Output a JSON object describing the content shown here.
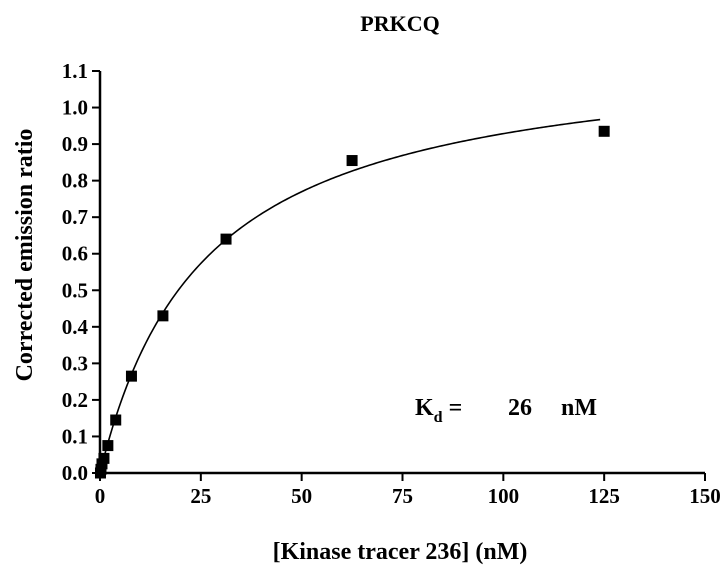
{
  "chart_data": {
    "type": "scatter",
    "title": "PRKCQ",
    "xlabel": "[Kinase tracer 236] (nM)",
    "ylabel": "Corrected emission ratio",
    "xlim": [
      0,
      150
    ],
    "ylim": [
      0,
      1.1
    ],
    "x_ticks": [
      "0",
      "25",
      "50",
      "75",
      "100",
      "125",
      "150"
    ],
    "y_ticks": [
      "0.0",
      "0.1",
      "0.2",
      "0.3",
      "0.4",
      "0.5",
      "0.6",
      "0.7",
      "0.8",
      "0.9",
      "1.0",
      "1.1"
    ],
    "series": [
      {
        "marker": "square",
        "x": [
          0.12,
          0.24,
          0.49,
          0.98,
          1.95,
          3.9,
          7.8,
          15.6,
          31.25,
          62.5,
          125
        ],
        "y": [
          0.0,
          0.01,
          0.025,
          0.04,
          0.075,
          0.145,
          0.265,
          0.43,
          0.64,
          0.855,
          0.935
        ]
      }
    ],
    "fit": {
      "model": "one-site binding",
      "Bmax": 1.17,
      "Kd": 26,
      "x_range": [
        0,
        124
      ]
    },
    "grid": false,
    "legend": "none"
  },
  "annotation": {
    "k": "K",
    "sub": "d",
    "eq": " =",
    "value": "26",
    "unit": "nM"
  },
  "colors": {
    "ink": "#000000",
    "background": "#ffffff"
  }
}
